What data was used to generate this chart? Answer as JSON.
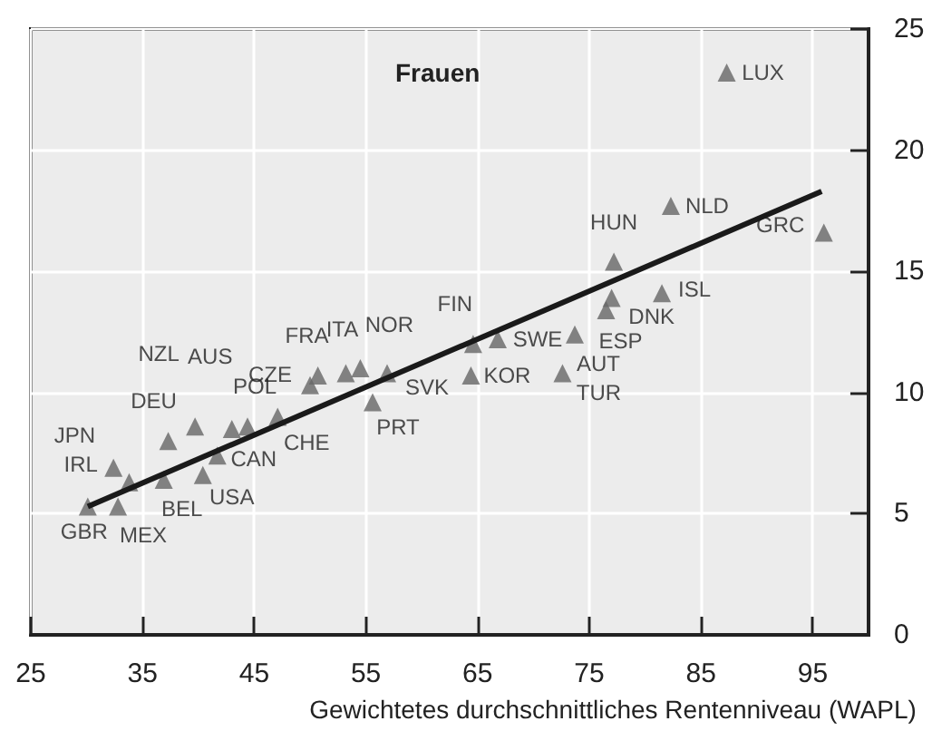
{
  "chart_data": {
    "type": "scatter",
    "title": "Frauen",
    "xlabel": "Gewichtetes durchschnittliches Rentenniveau (WAPL)",
    "series": [
      {
        "color": "#666666",
        "marker": "triangle",
        "x": [
          30.1,
          32.8,
          32.4,
          33.8,
          36.9,
          37.3,
          39.7,
          40.4,
          41.7,
          43.0,
          44.4,
          47.1,
          50.0,
          50.7,
          53.2,
          54.5,
          56.9,
          55.6,
          64.6,
          64.4,
          66.8,
          73.7,
          72.6,
          77.2,
          77.0,
          76.5,
          81.5,
          96.0,
          82.3,
          87.3
        ],
        "values": [
          5.3,
          5.3,
          6.9,
          6.3,
          6.4,
          8.0,
          8.6,
          6.6,
          7.4,
          8.5,
          8.6,
          9.0,
          10.3,
          10.7,
          10.8,
          11.0,
          10.8,
          9.6,
          12.0,
          10.7,
          12.2,
          12.4,
          10.8,
          15.4,
          13.9,
          13.4,
          14.1,
          16.6,
          17.7,
          23.2
        ]
      },
      {
        "type": "line",
        "marker": "none",
        "color": "#1a1a1a",
        "x": [
          30.1,
          95.8
        ],
        "values": [
          5.3,
          18.3
        ]
      }
    ],
    "annotations": [
      {
        "text": "GBR",
        "x": 30.1,
        "y": 5.3
      },
      {
        "text": "MEX",
        "x": 32.8,
        "y": 5.3
      },
      {
        "text": "IRL",
        "x": 32.4,
        "y": 6.9
      },
      {
        "text": "JPN",
        "x": 33.8,
        "y": 6.3
      },
      {
        "text": "BEL",
        "x": 36.9,
        "y": 6.4
      },
      {
        "text": "DEU",
        "x": 37.3,
        "y": 8.0
      },
      {
        "text": "NZL",
        "x": 39.7,
        "y": 8.6
      },
      {
        "text": "USA",
        "x": 40.4,
        "y": 6.6
      },
      {
        "text": "CAN",
        "x": 41.7,
        "y": 7.4
      },
      {
        "text": "AUS",
        "x": 43.0,
        "y": 8.5
      },
      {
        "text": "POL",
        "x": 44.4,
        "y": 8.6
      },
      {
        "text": "CHE",
        "x": 47.1,
        "y": 9.0
      },
      {
        "text": "CZE",
        "x": 50.0,
        "y": 10.3
      },
      {
        "text": "FRA",
        "x": 50.7,
        "y": 10.7
      },
      {
        "text": "ITA",
        "x": 53.2,
        "y": 10.8
      },
      {
        "text": "NOR",
        "x": 54.5,
        "y": 11.0
      },
      {
        "text": "SVK",
        "x": 56.9,
        "y": 10.8
      },
      {
        "text": "PRT",
        "x": 55.6,
        "y": 9.6
      },
      {
        "text": "FIN",
        "x": 64.6,
        "y": 12.0
      },
      {
        "text": "KOR",
        "x": 64.4,
        "y": 10.7
      },
      {
        "text": "SWE",
        "x": 66.8,
        "y": 12.2
      },
      {
        "text": "AUT",
        "x": 73.7,
        "y": 12.4
      },
      {
        "text": "TUR",
        "x": 72.6,
        "y": 10.8
      },
      {
        "text": "HUN",
        "x": 77.2,
        "y": 15.4
      },
      {
        "text": "DNK",
        "x": 77.0,
        "y": 13.9
      },
      {
        "text": "ESP",
        "x": 76.5,
        "y": 13.4
      },
      {
        "text": "ISL",
        "x": 81.5,
        "y": 14.1
      },
      {
        "text": "GRC",
        "x": 96.0,
        "y": 16.6
      },
      {
        "text": "NLD",
        "x": 82.3,
        "y": 17.7
      },
      {
        "text": "LUX",
        "x": 87.3,
        "y": 23.2
      }
    ],
    "xlim": [
      25,
      100
    ],
    "xticks": [
      25,
      35,
      45,
      55,
      65,
      75,
      85,
      95
    ],
    "ylim": [
      0,
      25
    ],
    "yticks": [
      0,
      5,
      10,
      15,
      20,
      25
    ],
    "grid": true,
    "line_style": "solid"
  }
}
